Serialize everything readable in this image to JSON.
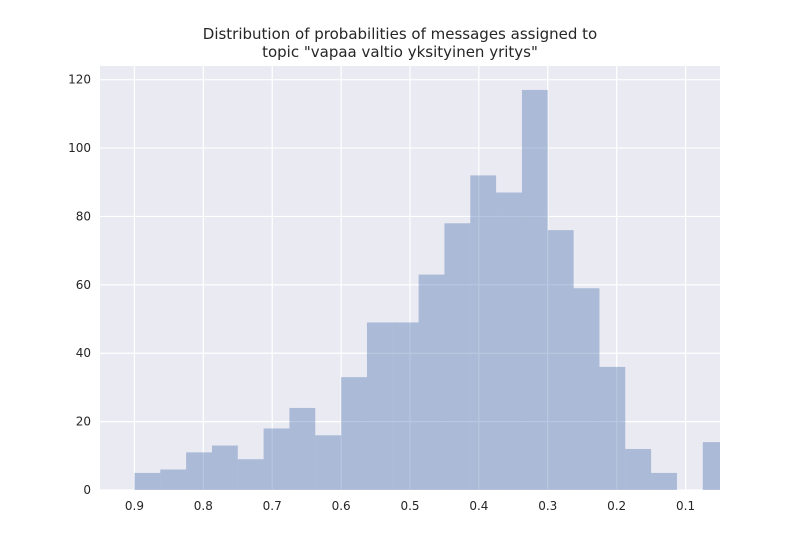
{
  "chart_data": {
    "type": "bar",
    "title_line1": "Distribution of probabilities of messages assigned to",
    "title_line2": "topic \"vapaa valtio yksityinen yritys\"",
    "xlabel": "",
    "ylabel": "",
    "x_reversed": true,
    "xlim": [
      0.95,
      0.05
    ],
    "ylim": [
      0,
      124
    ],
    "grid": true,
    "x_ticks": [
      0.9,
      0.8,
      0.7,
      0.6,
      0.5,
      0.4,
      0.3,
      0.2,
      0.1
    ],
    "x_tick_labels": [
      "0.9",
      "0.8",
      "0.7",
      "0.6",
      "0.5",
      "0.4",
      "0.3",
      "0.2",
      "0.1"
    ],
    "y_ticks": [
      0,
      20,
      40,
      60,
      80,
      100,
      120
    ],
    "y_tick_labels": [
      "0",
      "20",
      "40",
      "60",
      "80",
      "100",
      "120"
    ],
    "bin_width": 0.0375,
    "bins": [
      {
        "start": 0.9,
        "count": 5
      },
      {
        "start": 0.8625,
        "count": 6
      },
      {
        "start": 0.825,
        "count": 11
      },
      {
        "start": 0.7875,
        "count": 13
      },
      {
        "start": 0.75,
        "count": 9
      },
      {
        "start": 0.7125,
        "count": 18
      },
      {
        "start": 0.675,
        "count": 24
      },
      {
        "start": 0.6375,
        "count": 16
      },
      {
        "start": 0.6,
        "count": 33
      },
      {
        "start": 0.5625,
        "count": 49
      },
      {
        "start": 0.525,
        "count": 49
      },
      {
        "start": 0.4875,
        "count": 63
      },
      {
        "start": 0.45,
        "count": 78
      },
      {
        "start": 0.4125,
        "count": 92
      },
      {
        "start": 0.375,
        "count": 87
      },
      {
        "start": 0.3375,
        "count": 117
      },
      {
        "start": 0.3,
        "count": 76
      },
      {
        "start": 0.2625,
        "count": 59
      },
      {
        "start": 0.225,
        "count": 36
      },
      {
        "start": 0.1875,
        "count": 12
      },
      {
        "start": 0.15,
        "count": 5
      },
      {
        "start": 0.1125,
        "count": 0
      },
      {
        "start": 0.075,
        "count": 14
      }
    ],
    "colors": {
      "background": "#eaeaf2",
      "grid": "#ffffff",
      "bar": "#4c72b0",
      "bar_opacity": 0.4,
      "text": "#262626"
    }
  }
}
